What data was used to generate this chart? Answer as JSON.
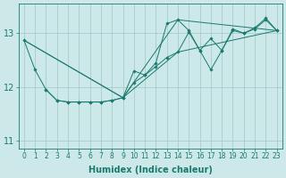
{
  "xlabel": "Humidex (Indice chaleur)",
  "bg_color": "#cce8e8",
  "grid_color": "#a0c8c8",
  "line_color": "#1a7a6e",
  "xlim": [
    -0.5,
    23.5
  ],
  "ylim": [
    10.85,
    13.55
  ],
  "yticks": [
    11,
    12,
    13
  ],
  "line1_x": [
    0,
    1,
    2,
    3,
    4,
    5,
    6,
    7,
    8,
    9,
    10,
    11,
    12,
    13,
    14,
    15,
    16,
    17,
    18,
    19,
    20,
    21,
    22,
    23
  ],
  "line1_y": [
    12.87,
    12.32,
    11.95,
    11.75,
    11.72,
    11.72,
    11.72,
    11.72,
    11.75,
    11.8,
    12.3,
    12.22,
    12.45,
    13.18,
    13.25,
    13.05,
    12.68,
    12.32,
    12.68,
    13.08,
    13.0,
    13.1,
    13.28,
    13.05
  ],
  "line2_x": [
    2,
    3,
    4,
    5,
    6,
    7,
    8,
    9,
    10,
    11,
    12,
    13,
    14,
    15,
    16,
    17,
    18,
    19,
    20,
    21,
    22,
    23
  ],
  "line2_y": [
    11.95,
    11.75,
    11.72,
    11.72,
    11.72,
    11.72,
    11.75,
    11.8,
    12.08,
    12.22,
    12.38,
    12.55,
    12.65,
    13.02,
    12.68,
    12.9,
    12.68,
    13.05,
    13.0,
    13.08,
    13.25,
    13.05
  ],
  "trendline1_x": [
    0,
    9,
    14,
    23
  ],
  "trendline1_y": [
    12.87,
    11.8,
    13.25,
    13.05
  ],
  "trendline2_x": [
    0,
    9,
    14,
    23
  ],
  "trendline2_y": [
    12.87,
    11.8,
    12.65,
    13.05
  ],
  "ylabel_fontsize": 7,
  "xlabel_fontsize": 7,
  "tick_fontsize": 5.5,
  "ytick_fontsize": 7
}
